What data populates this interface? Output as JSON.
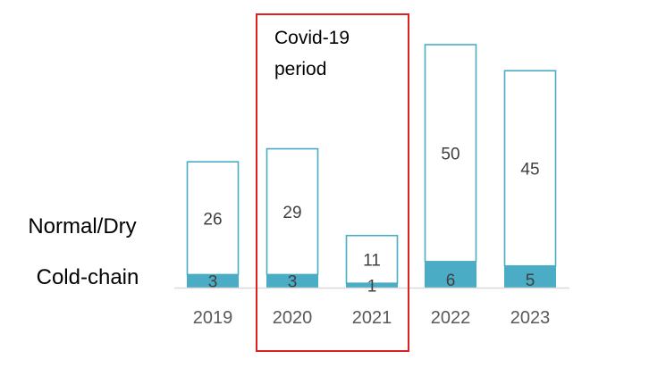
{
  "chart_data": {
    "type": "bar",
    "stacked": true,
    "categories": [
      "2019",
      "2020",
      "2021",
      "2022",
      "2023"
    ],
    "series": [
      {
        "name": "Cold-chain",
        "values": [
          3,
          3,
          1,
          6,
          5
        ],
        "color": "#4BACC6",
        "style": "filled"
      },
      {
        "name": "Normal/Dry",
        "values": [
          26,
          29,
          11,
          50,
          45
        ],
        "color": "#4BACC6",
        "style": "outline"
      }
    ],
    "ylim": [
      0,
      56
    ],
    "grid": false,
    "legend": "left",
    "annotation": {
      "lines": [
        "Covid-19",
        "period"
      ],
      "categories": [
        "2020",
        "2021"
      ],
      "color": "#E02020"
    },
    "axis_color": "#D9D9D9"
  }
}
